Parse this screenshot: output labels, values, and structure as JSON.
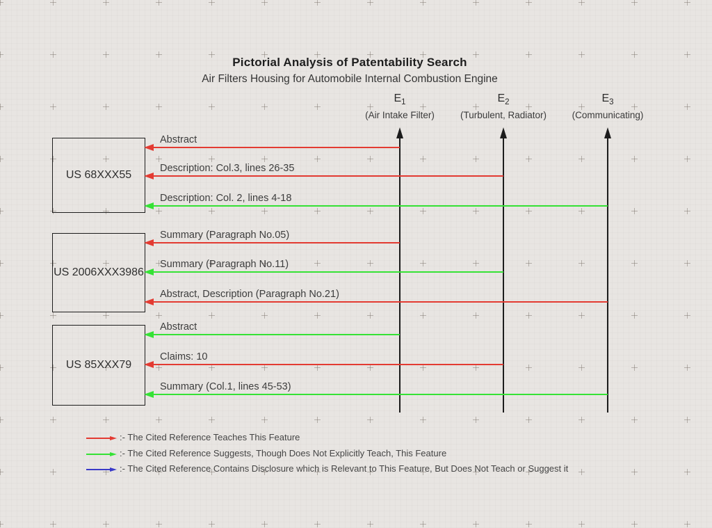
{
  "title": "Pictorial Analysis of Patentability Search",
  "subtitle": "Air Filters Housing for Automobile Internal Combustion Engine",
  "features": [
    {
      "label": "E",
      "sub": "1",
      "desc": "(Air Intake Filter)"
    },
    {
      "label": "E",
      "sub": "2",
      "desc": "(Turbulent, Radiator)"
    },
    {
      "label": "E",
      "sub": "3",
      "desc": "(Communicating)"
    }
  ],
  "references": [
    {
      "id": "US 68XXX55",
      "links": [
        {
          "text": "Abstract",
          "feature": 0,
          "relation": "teaches"
        },
        {
          "text": "Description: Col.3, lines 26-35",
          "feature": 1,
          "relation": "teaches"
        },
        {
          "text": "Description: Col. 2, lines 4-18",
          "feature": 2,
          "relation": "suggests"
        }
      ]
    },
    {
      "id": "US 2006XXX3986",
      "links": [
        {
          "text": "Summary (Paragraph No.05)",
          "feature": 0,
          "relation": "teaches"
        },
        {
          "text": "Summary (Paragraph No.11)",
          "feature": 1,
          "relation": "suggests"
        },
        {
          "text": "Abstract, Description (Paragraph No.21)",
          "feature": 2,
          "relation": "teaches"
        }
      ]
    },
    {
      "id": "US 85XXX79",
      "links": [
        {
          "text": "Abstract",
          "feature": 0,
          "relation": "suggests"
        },
        {
          "text": "Claims: 10",
          "feature": 1,
          "relation": "teaches"
        },
        {
          "text": "Summary (Col.1, lines 45-53)",
          "feature": 2,
          "relation": "suggests"
        }
      ]
    }
  ],
  "legend": [
    {
      "relation": "teaches",
      "text": ":- The Cited Reference Teaches This Feature"
    },
    {
      "relation": "suggests",
      "text": ":- The Cited Reference Suggests, Though Does Not Explicitly Teach, This Feature"
    },
    {
      "relation": "relevant",
      "text": ":- The Cited Reference Contains Disclosure which is Relevant to This Feature, But Does Not Teach or Suggest it"
    }
  ],
  "colors": {
    "teaches": "#e33b32",
    "suggests": "#35e235",
    "relevant": "#3a3ac8",
    "line": "#1c1c1c",
    "background": "#e8e5e2",
    "text": "#3d3d3d"
  }
}
